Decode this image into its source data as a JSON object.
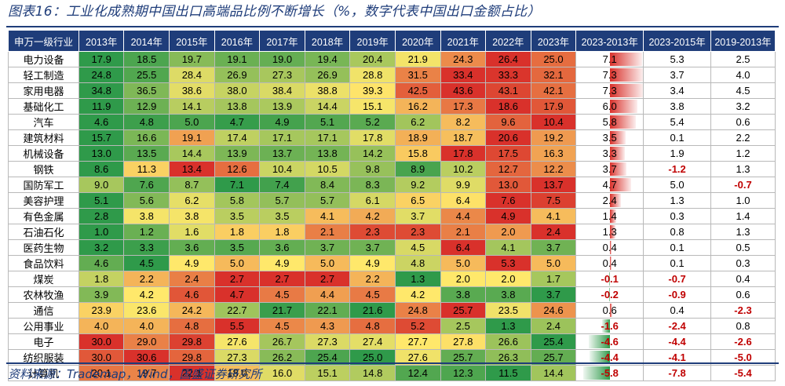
{
  "title": "图表16：工业化成熟期中国出口高端品比例不断增长（%，数字代表中国出口金额占比）",
  "source": "资料来源：Trademap，Wind，国盛证券研究所",
  "chart_data": {
    "type": "table",
    "columns": [
      "申万一级行业",
      "2013年",
      "2014年",
      "2015年",
      "2016年",
      "2017年",
      "2018年",
      "2019年",
      "2020年",
      "2021年",
      "2022年",
      "2023年",
      "2023-2013年",
      "2023-2015年",
      "2019-2013年"
    ],
    "heat_colors": {
      "low": "#2f9a4a",
      "mid": "#ffe86b",
      "high": "#d9312b"
    },
    "bar_colors": {
      "positive": "#d9312b",
      "negative": "#2f9a4a"
    },
    "negative_text_color": "#c00000",
    "rows": [
      {
        "industry": "电力设备",
        "values": [
          17.9,
          18.5,
          19.7,
          19.1,
          19.0,
          19.4,
          20.4,
          21.9,
          24.3,
          26.4,
          25.0
        ],
        "d_23_13": 7.1,
        "d_23_15": 5.3,
        "d_19_13": 2.5
      },
      {
        "industry": "轻工制造",
        "values": [
          24.8,
          25.5,
          28.4,
          26.9,
          27.3,
          26.9,
          28.8,
          31.5,
          33.4,
          33.3,
          32.1
        ],
        "d_23_13": 7.3,
        "d_23_15": 3.7,
        "d_19_13": 4.0
      },
      {
        "industry": "家用电器",
        "values": [
          34.8,
          36.5,
          38.6,
          38.0,
          38.4,
          38.8,
          39.3,
          42.5,
          43.6,
          43.1,
          42.1
        ],
        "d_23_13": 7.3,
        "d_23_15": 3.4,
        "d_19_13": 4.5
      },
      {
        "industry": "基础化工",
        "values": [
          11.9,
          12.9,
          14.1,
          13.8,
          13.9,
          14.4,
          15.1,
          16.2,
          17.3,
          18.6,
          17.9
        ],
        "d_23_13": 6.0,
        "d_23_15": 3.8,
        "d_19_13": 3.2
      },
      {
        "industry": "汽车",
        "values": [
          4.6,
          4.8,
          5.0,
          4.7,
          4.9,
          5.1,
          5.2,
          6.2,
          8.2,
          9.6,
          10.4
        ],
        "d_23_13": 5.8,
        "d_23_15": 5.4,
        "d_19_13": 0.6
      },
      {
        "industry": "建筑材料",
        "values": [
          15.7,
          16.6,
          19.1,
          17.4,
          17.1,
          17.1,
          17.8,
          18.9,
          18.7,
          20.6,
          19.2
        ],
        "d_23_13": 3.5,
        "d_23_15": 0.1,
        "d_19_13": 2.2
      },
      {
        "industry": "机械设备",
        "values": [
          13.0,
          13.5,
          14.4,
          13.9,
          13.7,
          13.8,
          14.2,
          15.8,
          17.8,
          17.5,
          16.3
        ],
        "d_23_13": 3.3,
        "d_23_15": 1.9,
        "d_19_13": 1.2
      },
      {
        "industry": "钢铁",
        "values": [
          8.6,
          11.3,
          13.4,
          12.6,
          10.4,
          10.5,
          9.8,
          8.9,
          10.2,
          12.7,
          12.2
        ],
        "d_23_13": 3.7,
        "d_23_15": -1.2,
        "d_19_13": 1.3
      },
      {
        "industry": "国防军工",
        "values": [
          9.0,
          7.6,
          8.7,
          7.1,
          7.4,
          8.4,
          8.3,
          9.2,
          9.9,
          13.0,
          13.7
        ],
        "d_23_13": 4.7,
        "d_23_15": 5.0,
        "d_19_13": -0.7
      },
      {
        "industry": "美容护理",
        "values": [
          5.1,
          5.6,
          6.2,
          5.8,
          5.7,
          5.7,
          6.1,
          6.5,
          6.4,
          7.6,
          7.5
        ],
        "d_23_13": 2.4,
        "d_23_15": 1.3,
        "d_19_13": 1.0
      },
      {
        "industry": "有色金属",
        "values": [
          2.8,
          3.8,
          3.8,
          3.5,
          3.5,
          4.1,
          4.2,
          3.7,
          4.4,
          4.9,
          4.1
        ],
        "d_23_13": 1.4,
        "d_23_15": 0.3,
        "d_19_13": 1.4
      },
      {
        "industry": "石油石化",
        "values": [
          1.0,
          1.2,
          1.6,
          1.8,
          1.8,
          2.1,
          2.3,
          2.3,
          2.1,
          2.0,
          2.4
        ],
        "d_23_13": 1.3,
        "d_23_15": 0.8,
        "d_19_13": 1.3
      },
      {
        "industry": "医药生物",
        "values": [
          3.2,
          3.3,
          3.6,
          3.5,
          3.6,
          3.7,
          3.7,
          4.5,
          6.4,
          4.1,
          3.7
        ],
        "d_23_13": 0.4,
        "d_23_15": 0.1,
        "d_19_13": 0.5
      },
      {
        "industry": "食品饮料",
        "values": [
          4.6,
          4.5,
          4.9,
          5.0,
          4.9,
          5.0,
          4.9,
          4.8,
          5.0,
          5.3,
          5.0
        ],
        "d_23_13": 0.4,
        "d_23_15": 0.1,
        "d_19_13": 0.3
      },
      {
        "industry": "煤炭",
        "values": [
          1.8,
          2.2,
          2.4,
          2.7,
          2.7,
          2.7,
          2.2,
          1.3,
          2.0,
          2.0,
          1.7
        ],
        "d_23_13": -0.1,
        "d_23_15": -0.7,
        "d_19_13": 0.4
      },
      {
        "industry": "农林牧渔",
        "values": [
          3.9,
          4.2,
          4.6,
          4.7,
          4.5,
          4.4,
          4.5,
          4.2,
          3.8,
          3.8,
          3.7
        ],
        "d_23_13": -0.2,
        "d_23_15": -0.9,
        "d_19_13": 0.6
      },
      {
        "industry": "通信",
        "values": [
          23.9,
          23.6,
          24.2,
          22.7,
          21.7,
          22.1,
          21.6,
          24.8,
          25.7,
          23.5,
          24.6
        ],
        "d_23_13": 0.6,
        "d_23_15": 0.4,
        "d_19_13": -2.3
      },
      {
        "industry": "公用事业",
        "values": [
          4.0,
          4.0,
          4.8,
          5.5,
          4.5,
          4.3,
          4.8,
          5.2,
          2.5,
          1.3,
          2.4
        ],
        "d_23_13": -1.6,
        "d_23_15": -2.4,
        "d_19_13": 0.8
      },
      {
        "industry": "电子",
        "values": [
          30.0,
          29.0,
          29.8,
          27.6,
          26.7,
          27.3,
          27.4,
          27.7,
          27.8,
          26.6,
          25.4
        ],
        "d_23_13": -4.6,
        "d_23_15": -4.4,
        "d_19_13": -2.6
      },
      {
        "industry": "纺织服装",
        "values": [
          30.0,
          30.6,
          29.8,
          27.3,
          26.2,
          25.4,
          25.0,
          27.6,
          25.7,
          26.3,
          25.7
        ],
        "d_23_13": -4.4,
        "d_23_15": -4.1,
        "d_19_13": -5.0
      },
      {
        "industry": "计算机",
        "values": [
          20.1,
          19.7,
          22.1,
          18.0,
          16.0,
          15.1,
          14.8,
          12.4,
          12.3,
          11.5,
          14.4
        ],
        "d_23_13": -5.8,
        "d_23_15": -7.8,
        "d_19_13": -5.4
      }
    ]
  }
}
